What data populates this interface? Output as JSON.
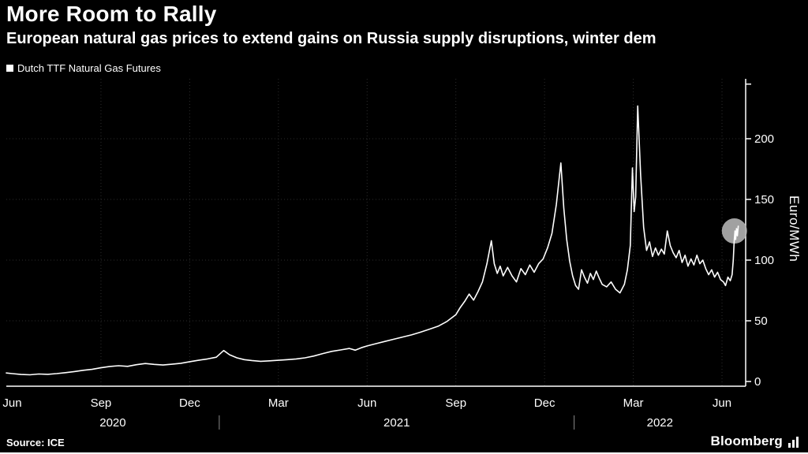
{
  "header": {
    "title": "More Room to Rally",
    "subtitle": "European natural gas prices to extend gains on Russia supply disruptions, winter dem"
  },
  "legend": {
    "label": "Dutch TTF Natural Gas Futures"
  },
  "footer": {
    "source": "Source: ICE",
    "brand": "Bloomberg"
  },
  "chart_data": {
    "type": "line",
    "title": "Dutch TTF Natural Gas Futures",
    "xlabel": "",
    "ylabel": "Euro/MWh",
    "ylim": [
      0,
      245
    ],
    "yticks": [
      0,
      50,
      100,
      150,
      200
    ],
    "x_unit": "months_since_jun_2020",
    "xlim": [
      -0.2,
      24.8
    ],
    "x_ticks": [
      {
        "label": "Jun",
        "m": 0
      },
      {
        "label": "Sep",
        "m": 3
      },
      {
        "label": "Dec",
        "m": 6
      },
      {
        "label": "Mar",
        "m": 9
      },
      {
        "label": "Jun",
        "m": 12
      },
      {
        "label": "Sep",
        "m": 15
      },
      {
        "label": "Dec",
        "m": 18
      },
      {
        "label": "Mar",
        "m": 21
      },
      {
        "label": "Jun",
        "m": 24
      }
    ],
    "year_labels": [
      {
        "label": "2020",
        "from": -0.2,
        "to": 7
      },
      {
        "label": "2021",
        "from": 7,
        "to": 19
      },
      {
        "label": "2022",
        "from": 19,
        "to": 24.8
      }
    ],
    "year_dividers": [
      7,
      19
    ],
    "grid": "dotted",
    "legend_position": "top-left",
    "background": "#000000",
    "line_color": "#ffffff",
    "grid_color": "#2d2d2d",
    "highlight": {
      "m": 24.42,
      "value": 124,
      "radius_px": 16,
      "color": "#b3b3b3"
    },
    "series": [
      {
        "name": "Dutch TTF Natural Gas Futures",
        "points": [
          [
            -0.2,
            7
          ],
          [
            0,
            6.5
          ],
          [
            0.3,
            5.8
          ],
          [
            0.6,
            5.5
          ],
          [
            0.9,
            6.2
          ],
          [
            1.2,
            5.9
          ],
          [
            1.5,
            6.5
          ],
          [
            1.8,
            7.3
          ],
          [
            2.1,
            8.2
          ],
          [
            2.4,
            9.2
          ],
          [
            2.7,
            10
          ],
          [
            3,
            11.3
          ],
          [
            3.3,
            12.4
          ],
          [
            3.6,
            13
          ],
          [
            3.9,
            12.5
          ],
          [
            4.2,
            13.8
          ],
          [
            4.5,
            14.8
          ],
          [
            4.8,
            14.1
          ],
          [
            5.1,
            13.6
          ],
          [
            5.4,
            14.2
          ],
          [
            5.7,
            15
          ],
          [
            6,
            16.3
          ],
          [
            6.3,
            17.5
          ],
          [
            6.6,
            18.6
          ],
          [
            6.9,
            20
          ],
          [
            7.15,
            25.5
          ],
          [
            7.35,
            22
          ],
          [
            7.6,
            19.5
          ],
          [
            7.85,
            18
          ],
          [
            8.1,
            17.3
          ],
          [
            8.4,
            16.6
          ],
          [
            8.7,
            17
          ],
          [
            9,
            17.5
          ],
          [
            9.3,
            18
          ],
          [
            9.6,
            18.6
          ],
          [
            9.9,
            19.5
          ],
          [
            10.2,
            21
          ],
          [
            10.5,
            23
          ],
          [
            10.8,
            24.8
          ],
          [
            11.1,
            26
          ],
          [
            11.4,
            27.2
          ],
          [
            11.6,
            25.8
          ],
          [
            11.8,
            27.8
          ],
          [
            12,
            29.3
          ],
          [
            12.3,
            31.2
          ],
          [
            12.6,
            33
          ],
          [
            12.9,
            34.8
          ],
          [
            13.2,
            36.6
          ],
          [
            13.5,
            38.4
          ],
          [
            13.8,
            40.6
          ],
          [
            14.1,
            43
          ],
          [
            14.4,
            45.5
          ],
          [
            14.7,
            49.5
          ],
          [
            15,
            55
          ],
          [
            15.15,
            61
          ],
          [
            15.3,
            66
          ],
          [
            15.45,
            72
          ],
          [
            15.6,
            67
          ],
          [
            15.75,
            74
          ],
          [
            15.9,
            82
          ],
          [
            16.05,
            97
          ],
          [
            16.2,
            116
          ],
          [
            16.3,
            97
          ],
          [
            16.4,
            89
          ],
          [
            16.5,
            95
          ],
          [
            16.6,
            87
          ],
          [
            16.75,
            94
          ],
          [
            16.9,
            87
          ],
          [
            17.05,
            82
          ],
          [
            17.2,
            93
          ],
          [
            17.35,
            88
          ],
          [
            17.5,
            96
          ],
          [
            17.65,
            90
          ],
          [
            17.8,
            97
          ],
          [
            17.95,
            101
          ],
          [
            18.1,
            110
          ],
          [
            18.25,
            122
          ],
          [
            18.4,
            146
          ],
          [
            18.55,
            180
          ],
          [
            18.65,
            143
          ],
          [
            18.75,
            117
          ],
          [
            18.85,
            99
          ],
          [
            18.95,
            87
          ],
          [
            19.05,
            79
          ],
          [
            19.15,
            76
          ],
          [
            19.25,
            92
          ],
          [
            19.35,
            86
          ],
          [
            19.45,
            81
          ],
          [
            19.55,
            89
          ],
          [
            19.65,
            84
          ],
          [
            19.75,
            91
          ],
          [
            19.85,
            85
          ],
          [
            19.95,
            80
          ],
          [
            20.1,
            78
          ],
          [
            20.25,
            82
          ],
          [
            20.4,
            76
          ],
          [
            20.55,
            73
          ],
          [
            20.7,
            80
          ],
          [
            20.8,
            92
          ],
          [
            20.9,
            112
          ],
          [
            20.97,
            176
          ],
          [
            21.03,
            140
          ],
          [
            21.08,
            152
          ],
          [
            21.15,
            227
          ],
          [
            21.25,
            170
          ],
          [
            21.35,
            127
          ],
          [
            21.45,
            108
          ],
          [
            21.55,
            115
          ],
          [
            21.65,
            103
          ],
          [
            21.75,
            110
          ],
          [
            21.85,
            104
          ],
          [
            21.95,
            109
          ],
          [
            22.05,
            105
          ],
          [
            22.15,
            124
          ],
          [
            22.25,
            112
          ],
          [
            22.35,
            106
          ],
          [
            22.45,
            102
          ],
          [
            22.55,
            108
          ],
          [
            22.65,
            98
          ],
          [
            22.75,
            104
          ],
          [
            22.85,
            95
          ],
          [
            22.95,
            101
          ],
          [
            23.05,
            96
          ],
          [
            23.15,
            104
          ],
          [
            23.25,
            97
          ],
          [
            23.35,
            100
          ],
          [
            23.45,
            93
          ],
          [
            23.55,
            88
          ],
          [
            23.65,
            92
          ],
          [
            23.75,
            86
          ],
          [
            23.85,
            90
          ],
          [
            23.95,
            84
          ],
          [
            24.05,
            82
          ],
          [
            24.12,
            79
          ],
          [
            24.2,
            86
          ],
          [
            24.28,
            83
          ],
          [
            24.34,
            88
          ],
          [
            24.38,
            100
          ],
          [
            24.41,
            115
          ],
          [
            24.44,
            124
          ],
          [
            24.46,
            117
          ],
          [
            24.49,
            126
          ],
          [
            24.52,
            120
          ],
          [
            24.55,
            128
          ]
        ]
      }
    ]
  }
}
